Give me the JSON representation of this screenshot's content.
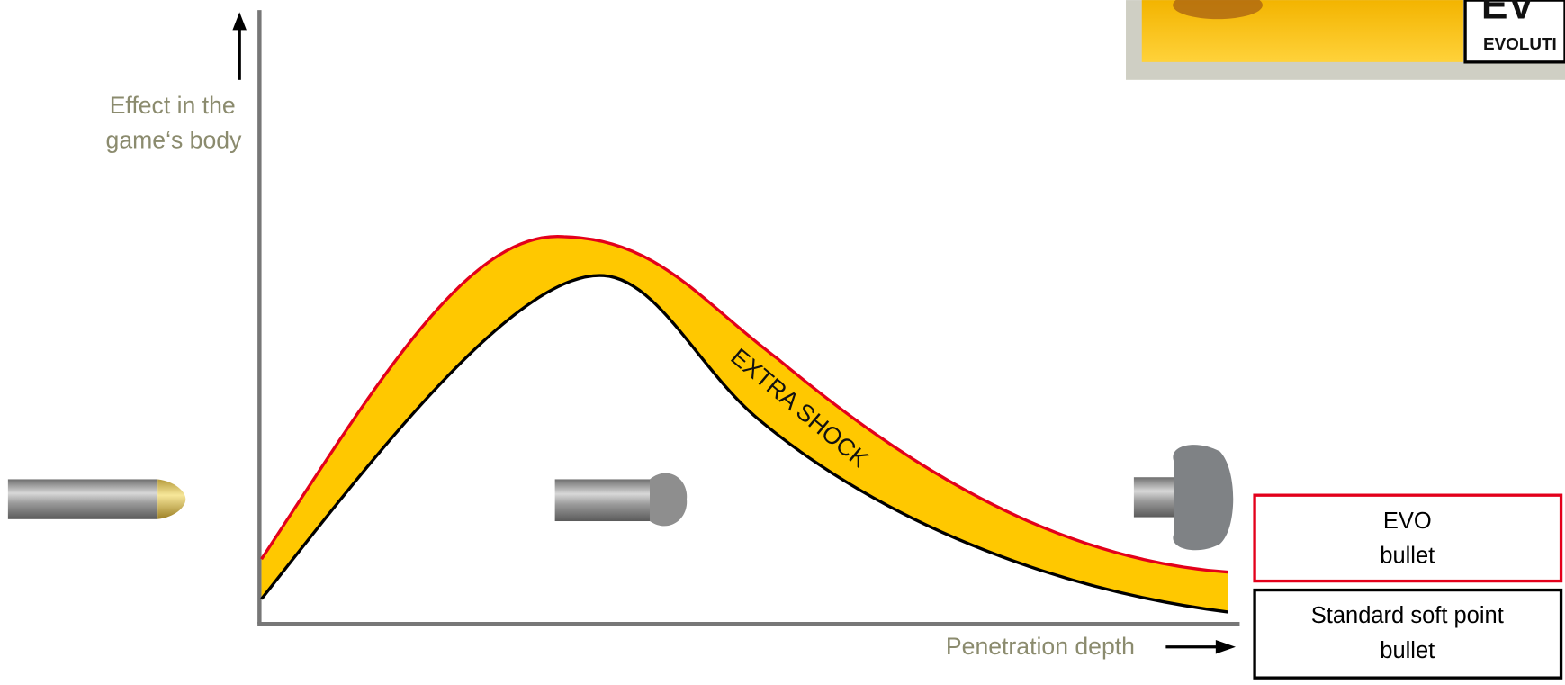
{
  "y_axis_label": [
    "Effect in the",
    "game‘s body"
  ],
  "x_axis_label": "Penetration depth",
  "band_label": "EXTRA SHOCK",
  "legend": [
    {
      "lines": [
        "EVO",
        "bullet"
      ]
    },
    {
      "lines": [
        "Standard soft point",
        "bullet"
      ]
    }
  ],
  "logo": {
    "mark": "EV",
    "text": "EVOLUTI"
  }
}
